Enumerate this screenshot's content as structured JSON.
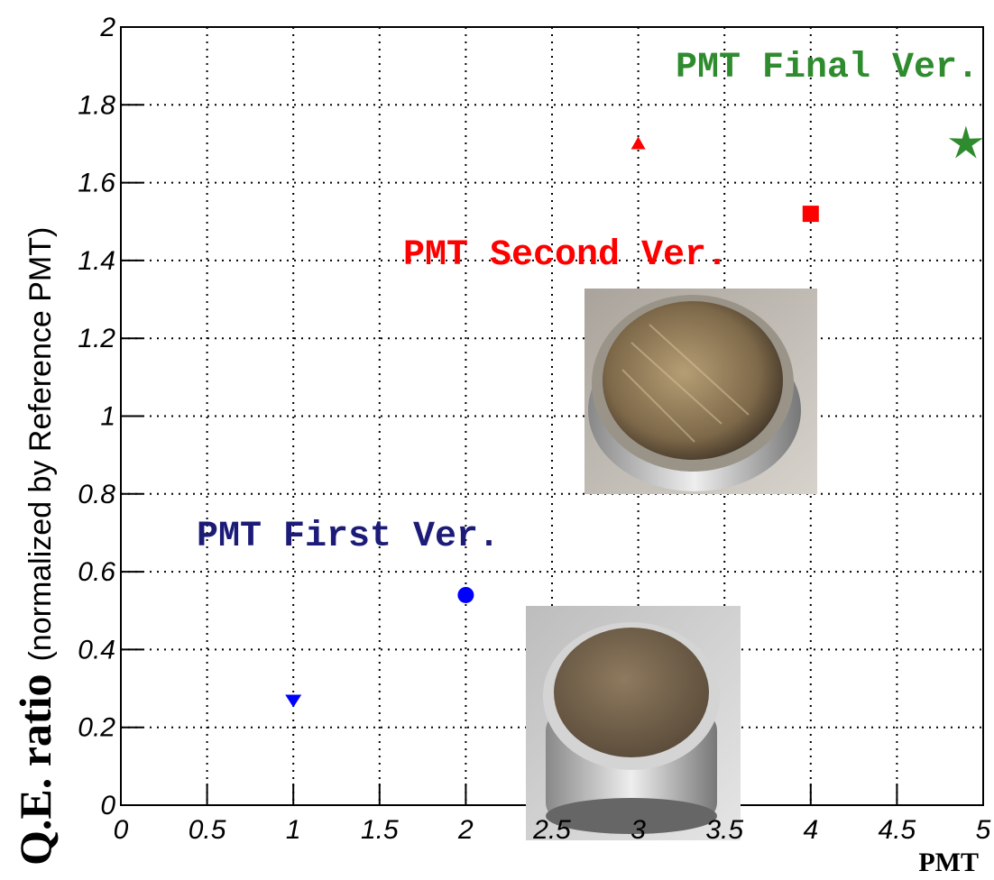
{
  "chart_data": {
    "type": "scatter",
    "xlabel": "PMT",
    "ylabel": "Q.E. ratio",
    "ylabel_note": "(normalized by Reference PMT)",
    "xlim": [
      0,
      5
    ],
    "ylim": [
      0,
      2
    ],
    "xticks": [
      0,
      0.5,
      1,
      1.5,
      2,
      2.5,
      3,
      3.5,
      4,
      4.5,
      5
    ],
    "yticks": [
      0,
      0.2,
      0.4,
      0.6,
      0.8,
      1,
      1.2,
      1.4,
      1.6,
      1.8,
      2
    ],
    "grid": true,
    "series": [
      {
        "name": "PMT First Ver.",
        "color": "#0000ff",
        "label_color": "#1c1c78",
        "x": [
          1,
          2
        ],
        "values": [
          0.27,
          0.54
        ],
        "markers": [
          "triangle-down",
          "circle"
        ]
      },
      {
        "name": "PMT Second Ver.",
        "color": "#ff0000",
        "label_color": "#ff0000",
        "x": [
          3,
          4
        ],
        "values": [
          1.7,
          1.52
        ],
        "markers": [
          "triangle-up",
          "square"
        ]
      },
      {
        "name": "PMT Final Ver.",
        "color": "#2e8b2e",
        "label_color": "#2e8b2e",
        "x": [
          4.9
        ],
        "values": [
          1.7
        ],
        "markers": [
          "star"
        ]
      }
    ]
  }
}
